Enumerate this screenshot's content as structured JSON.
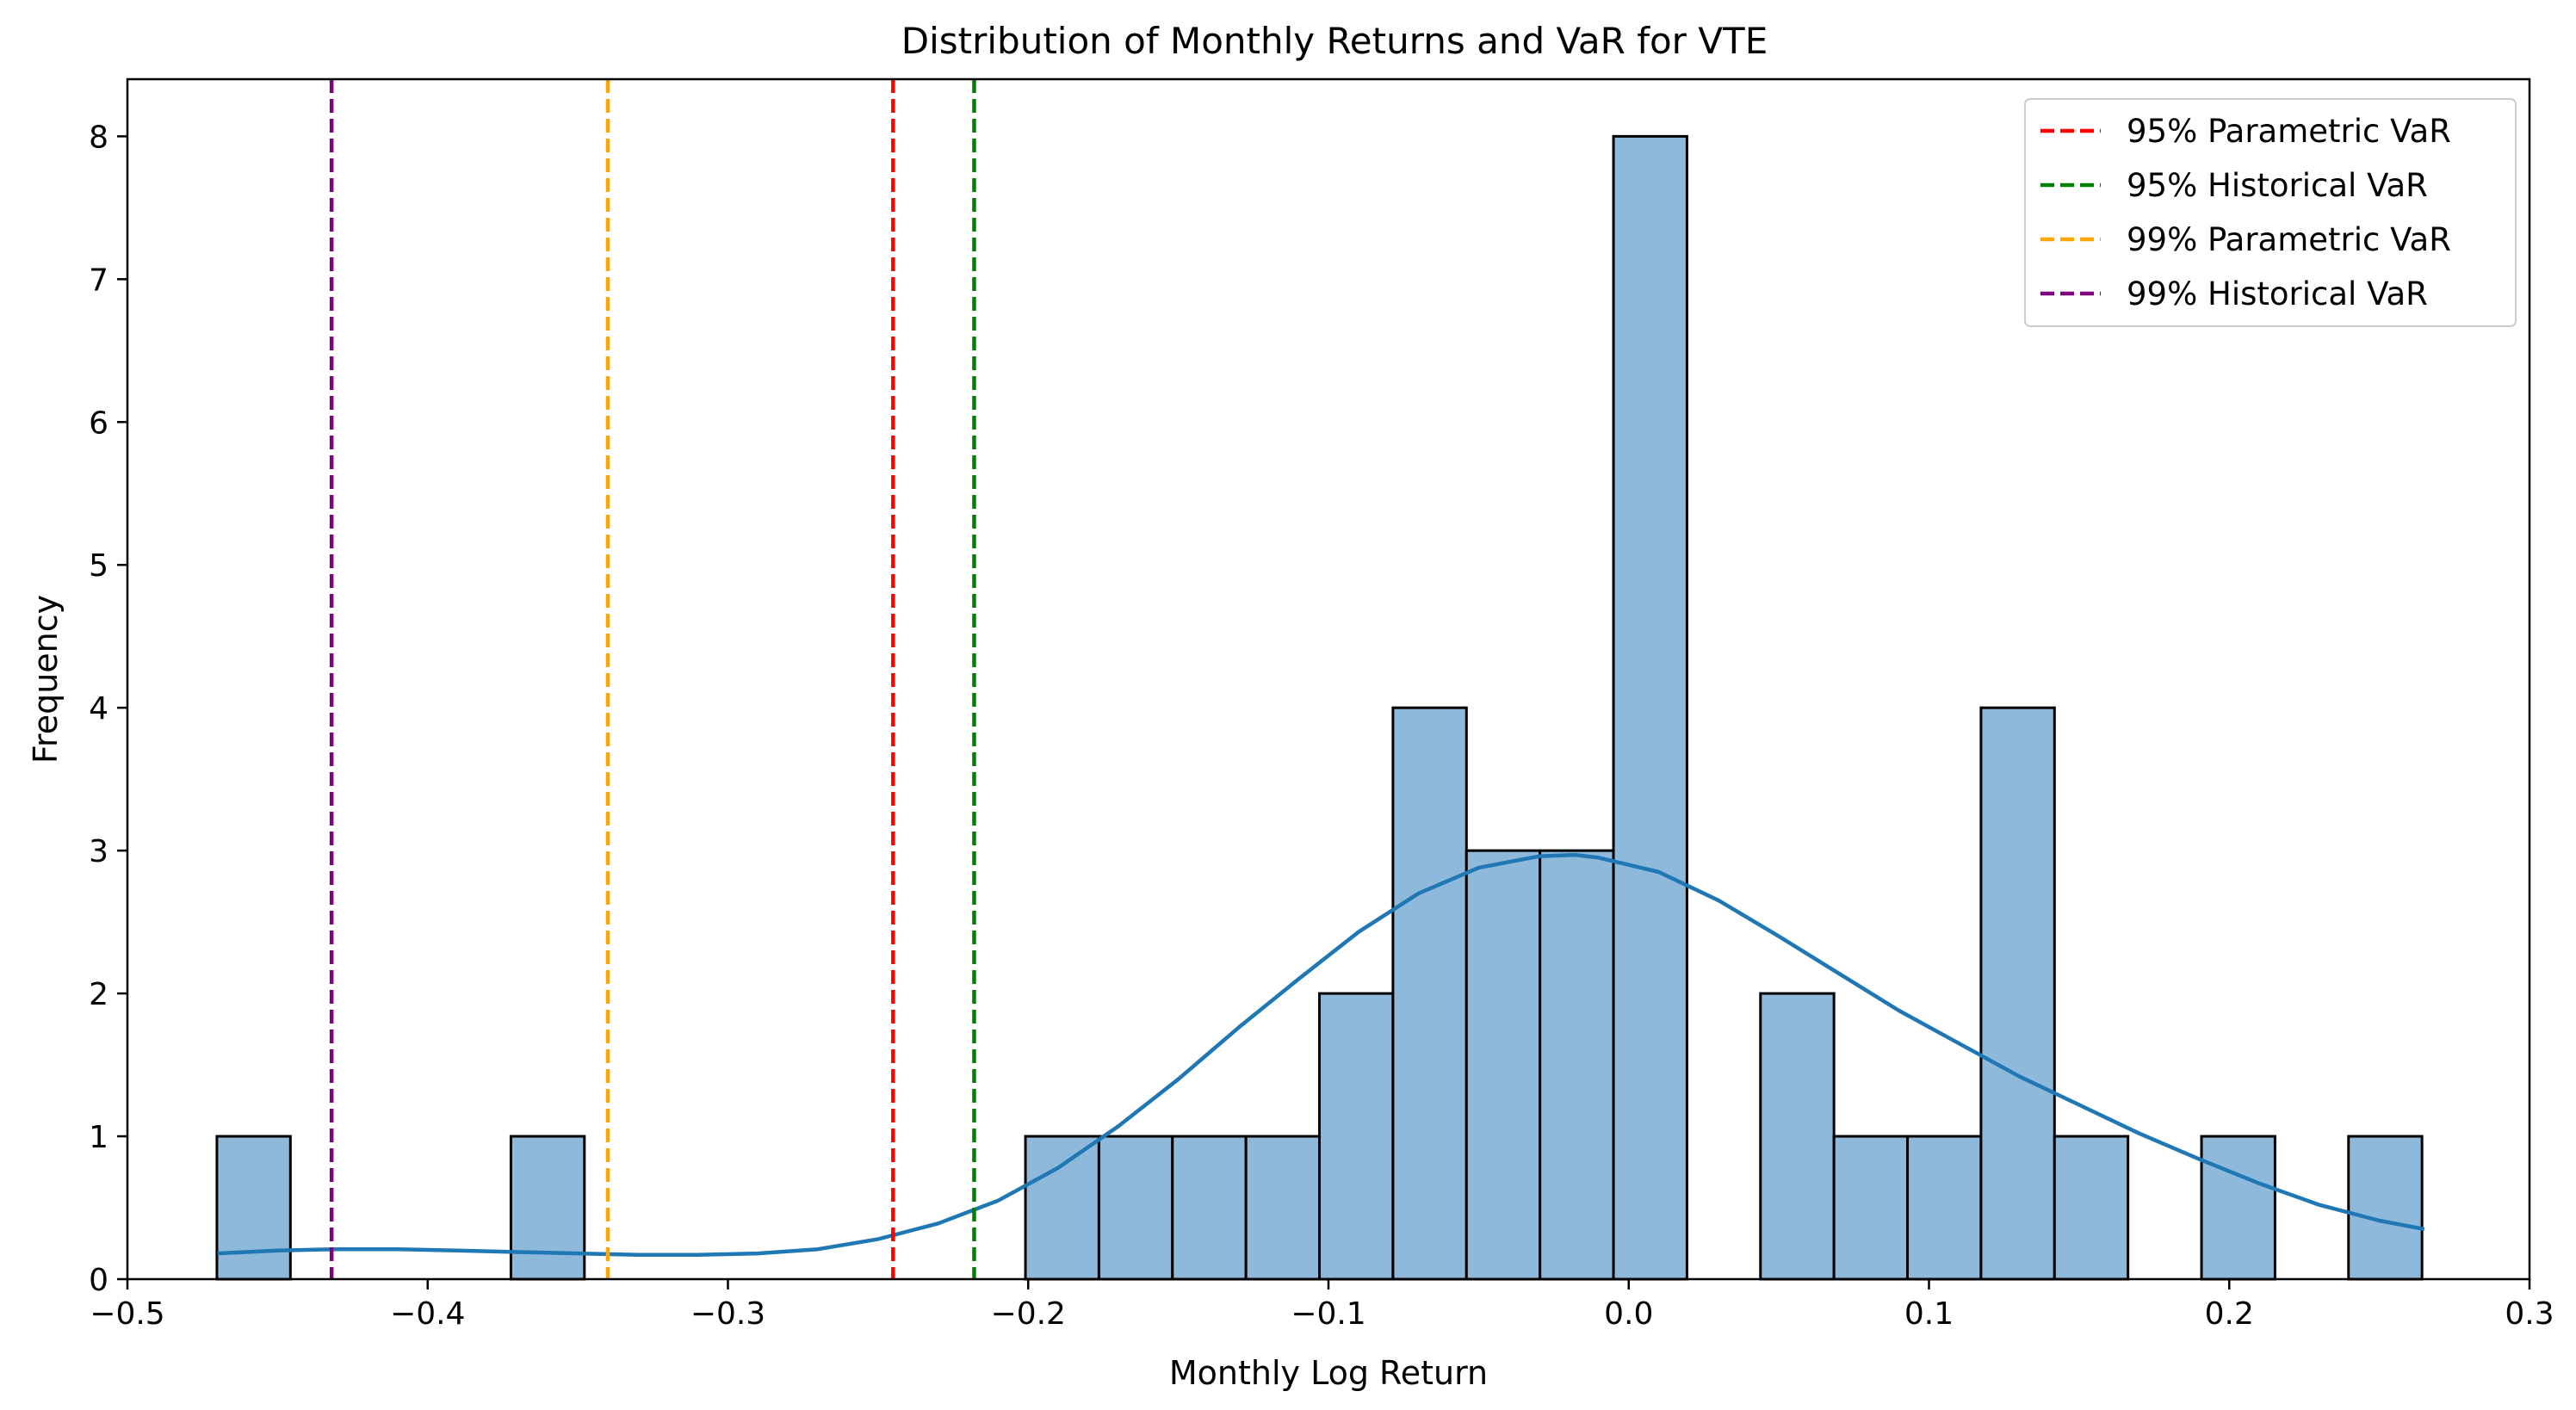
{
  "chart_data": {
    "type": "bar",
    "title": "Distribution of Monthly Returns and VaR for VTE",
    "xlabel": "Monthly Log Return",
    "ylabel": "Frequency",
    "xlim": [
      -0.5,
      0.3
    ],
    "ylim": [
      0,
      8.4
    ],
    "x_ticks": [
      -0.5,
      -0.4,
      -0.3,
      -0.2,
      -0.1,
      0.0,
      0.1,
      0.2,
      0.3
    ],
    "x_tick_labels": [
      "−0.5",
      "−0.4",
      "−0.3",
      "−0.2",
      "−0.1",
      "0.0",
      "0.1",
      "0.2",
      "0.3"
    ],
    "y_ticks": [
      0,
      1,
      2,
      3,
      4,
      5,
      6,
      7,
      8
    ],
    "y_tick_labels": [
      "0",
      "1",
      "2",
      "3",
      "4",
      "5",
      "6",
      "7",
      "8"
    ],
    "histogram": {
      "bin_start": -0.4702,
      "bin_width": 0.02448,
      "counts": [
        1,
        0,
        0,
        0,
        1,
        0,
        0,
        0,
        0,
        0,
        0,
        1,
        1,
        1,
        1,
        2,
        4,
        3,
        3,
        8,
        0,
        2,
        1,
        1,
        4,
        1,
        0,
        1,
        0,
        1
      ],
      "fill_color": "#8fb9db",
      "edge_color": "#000000"
    },
    "kde": {
      "color": "#1f77b4",
      "x": [
        -0.47,
        -0.45,
        -0.43,
        -0.41,
        -0.39,
        -0.37,
        -0.35,
        -0.33,
        -0.31,
        -0.29,
        -0.27,
        -0.25,
        -0.23,
        -0.21,
        -0.19,
        -0.17,
        -0.15,
        -0.13,
        -0.11,
        -0.09,
        -0.07,
        -0.05,
        -0.03,
        -0.018,
        -0.01,
        0.01,
        0.03,
        0.05,
        0.07,
        0.09,
        0.11,
        0.13,
        0.15,
        0.17,
        0.19,
        0.21,
        0.23,
        0.25,
        0.265
      ],
      "y": [
        0.18,
        0.2,
        0.21,
        0.21,
        0.2,
        0.19,
        0.18,
        0.17,
        0.17,
        0.18,
        0.21,
        0.28,
        0.39,
        0.55,
        0.78,
        1.07,
        1.4,
        1.76,
        2.1,
        2.43,
        2.7,
        2.88,
        2.96,
        2.97,
        2.95,
        2.85,
        2.65,
        2.4,
        2.14,
        1.88,
        1.65,
        1.42,
        1.22,
        1.02,
        0.84,
        0.67,
        0.52,
        0.41,
        0.35
      ]
    },
    "var_lines": [
      {
        "name": "95% Parametric VaR",
        "x": -0.245,
        "color": "#ff0000"
      },
      {
        "name": "95% Historical VaR",
        "x": -0.218,
        "color": "#008000"
      },
      {
        "name": "99% Parametric VaR",
        "x": -0.34,
        "color": "#ffa500"
      },
      {
        "name": "99% Historical VaR",
        "x": -0.432,
        "color": "#800080"
      }
    ],
    "legend": {
      "placement": "top-right"
    },
    "grid": false
  }
}
